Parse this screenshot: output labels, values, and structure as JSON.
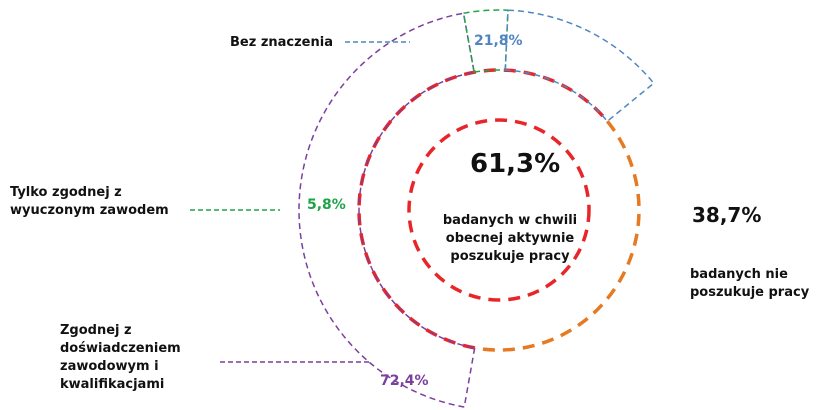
{
  "chart_data": {
    "type": "donut",
    "inner": {
      "categories": [
        "badanych w chwili obecnej aktywnie poszukuje pracy",
        "badanych nie poszukuje pracy"
      ],
      "values": [
        61.3,
        38.7
      ],
      "value_labels": [
        "61,3%",
        "38,7%"
      ],
      "colors": [
        "#e8262a",
        "#e67a22"
      ]
    },
    "outer": {
      "categories": [
        "Zgodnej z doświadczeniem zawodowym i kwalifikacjami",
        "Tylko zgodnej z wyuczonym zawodem",
        "Bez znaczenia"
      ],
      "values": [
        72.4,
        5.8,
        21.8
      ],
      "value_labels": [
        "72,4%",
        "5,8%",
        "21,8%"
      ],
      "colors": [
        "#7b3f9e",
        "#1fa34a",
        "#4f86c0"
      ]
    }
  }
}
